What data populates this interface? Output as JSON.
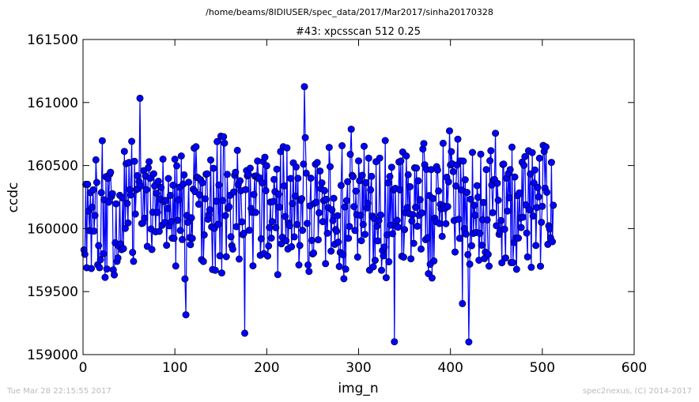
{
  "chart_data": {
    "type": "line",
    "suptitle": "/home/beams/8IDIUSER/spec_data/2017/Mar2017/sinha20170328",
    "title": "#43: xpcsscan 512 0.25",
    "xlabel": "img_n",
    "ylabel": "ccdc",
    "xlim": [
      0,
      600
    ],
    "ylim": [
      159000,
      161500
    ],
    "xticks": [
      "0",
      "100",
      "200",
      "300",
      "400",
      "500",
      "600"
    ],
    "yticks": [
      "159000",
      "159500",
      "160000",
      "160500",
      "161000",
      "161500"
    ],
    "grid": false,
    "marker": "circle",
    "color": "#0000ff",
    "n_points": 512,
    "seed": 43
  },
  "footer": {
    "timestamp": "Tue Mar 28 22:15:55 2017",
    "credit": "spec2nexus, (C) 2014-2017"
  }
}
